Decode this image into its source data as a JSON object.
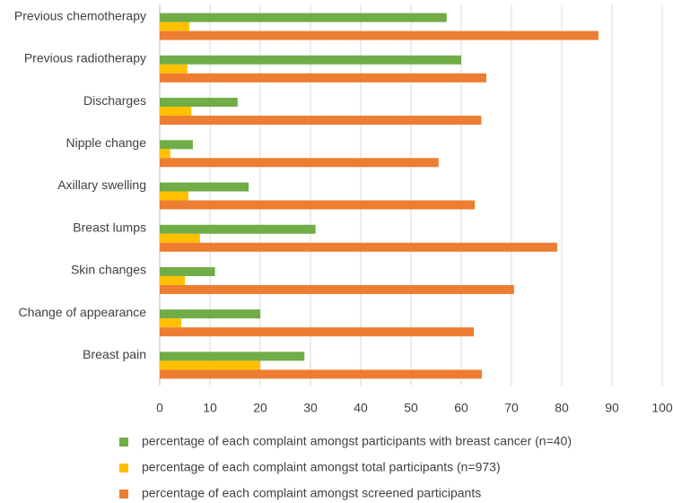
{
  "chart_data": {
    "type": "hbar",
    "categories": [
      "Previous chemotherapy",
      "Previous radiotherapy",
      "Discharges",
      "Nipple change",
      "Axillary swelling",
      "Breast lumps",
      "Skin changes",
      "Change of appearance",
      "Breast pain"
    ],
    "series": [
      {
        "name": "percentage of each complaint amongst participants with breast cancer (n=40)",
        "color": "#70ad47",
        "values": [
          57.1,
          60,
          15.5,
          6.6,
          17.7,
          31,
          11,
          20,
          28.8
        ]
      },
      {
        "name": "percentage of each complaint amongst total participants (n=973)",
        "color": "#ffc000",
        "values": [
          5.9,
          5.5,
          6.3,
          2.1,
          5.7,
          8,
          5,
          4.3,
          20
        ]
      },
      {
        "name": "percentage of each complaint amongst screened participants",
        "color": "#ed7d31",
        "values": [
          87.3,
          65,
          64,
          55.5,
          62.7,
          79.1,
          70.5,
          62.5,
          64.1
        ]
      }
    ],
    "xlim": [
      0,
      100
    ],
    "xticks": [
      0,
      10,
      20,
      30,
      40,
      50,
      60,
      70,
      80,
      90,
      100
    ],
    "grid": true,
    "legend": "bottom"
  }
}
